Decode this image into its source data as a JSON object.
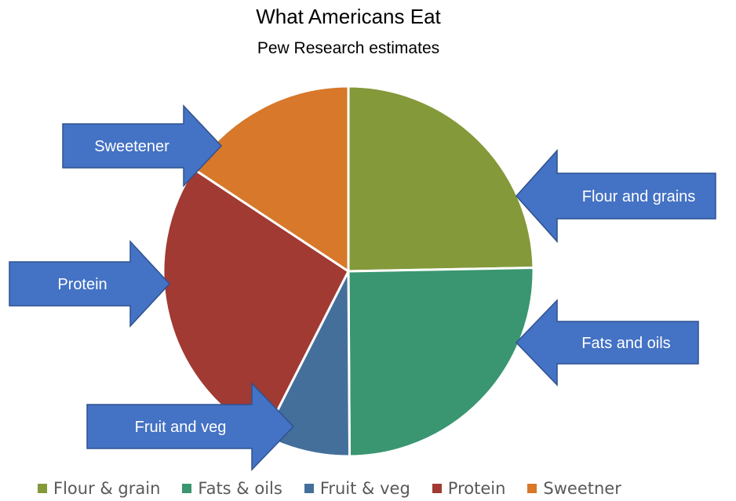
{
  "chart_data": {
    "type": "pie",
    "title": "What Americans Eat",
    "subtitle": "Pew Research estimates",
    "categories": [
      "Flour & grain",
      "Fats & oils",
      "Fruit & veg",
      "Protein",
      "Sweetner"
    ],
    "values": [
      24.7,
      25.2,
      7.6,
      26.8,
      15.7
    ],
    "colors": [
      "#84993a",
      "#3a9670",
      "#446f9b",
      "#a13a33",
      "#d7782a"
    ],
    "legend_position": "bottom",
    "annotations": [
      {
        "label": "Flour and grains",
        "points_to": "Flour & grain"
      },
      {
        "label": "Fats and oils",
        "points_to": "Fats & oils"
      },
      {
        "label": "Fruit and veg",
        "points_to": "Fruit & veg"
      },
      {
        "label": "Protein",
        "points_to": "Protein"
      },
      {
        "label": "Sweetener",
        "points_to": "Sweetner"
      }
    ],
    "annotation_color": "#4472c4"
  }
}
